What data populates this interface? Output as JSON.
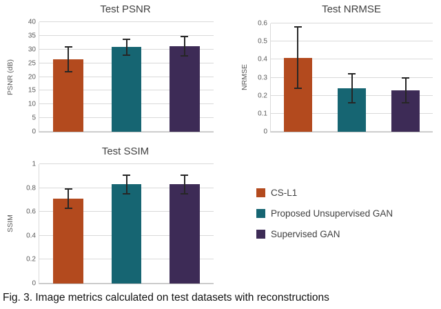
{
  "caption": "Fig. 3. Image metrics calculated on test datasets with reconstructions",
  "legend": {
    "items": [
      {
        "label": "CS-L1",
        "color": "#B34A1E"
      },
      {
        "label": "Proposed Unsupervised GAN",
        "color": "#166572"
      },
      {
        "label": "Supervised GAN",
        "color": "#3D2B56"
      }
    ]
  },
  "chart_data": [
    {
      "type": "bar",
      "title": "Test PSNR",
      "xlabel": "",
      "ylabel": "PSNR (dB)",
      "ylim": [
        0,
        40
      ],
      "yticks": [
        0,
        5,
        10,
        15,
        20,
        25,
        30,
        35,
        40
      ],
      "ytick_labels": [
        "0",
        "5",
        "10",
        "15",
        "20",
        "25",
        "30",
        "35",
        "40"
      ],
      "categories": [
        "CS-L1",
        "Proposed Unsupervised GAN",
        "Supervised GAN"
      ],
      "values": [
        26.4,
        30.9,
        31.2
      ],
      "errors_minus": [
        4.6,
        2.9,
        3.6
      ],
      "errors_plus": [
        4.6,
        2.9,
        3.6
      ],
      "grid": true,
      "legend_position": "none"
    },
    {
      "type": "bar",
      "title": "Test NRMSE",
      "xlabel": "",
      "ylabel": "NRMSE",
      "ylim": [
        0,
        0.6
      ],
      "yticks": [
        0,
        0.1,
        0.2,
        0.3,
        0.4,
        0.5,
        0.6
      ],
      "ytick_labels": [
        "0",
        "0.1",
        "0.2",
        "0.3",
        "0.4",
        "0.5",
        "0.6"
      ],
      "categories": [
        "CS-L1",
        "Proposed Unsupervised GAN",
        "Supervised GAN"
      ],
      "values": [
        0.41,
        0.24,
        0.23
      ],
      "errors_minus": [
        0.17,
        0.08,
        0.07
      ],
      "errors_plus": [
        0.17,
        0.08,
        0.07
      ],
      "grid": true,
      "legend_position": "none"
    },
    {
      "type": "bar",
      "title": "Test SSIM",
      "xlabel": "",
      "ylabel": "SSIM",
      "ylim": [
        0,
        1
      ],
      "yticks": [
        0,
        0.2,
        0.4,
        0.6,
        0.8,
        1
      ],
      "ytick_labels": [
        "0",
        "0.2",
        "0.4",
        "0.6",
        "0.8",
        "1"
      ],
      "categories": [
        "CS-L1",
        "Proposed Unsupervised GAN",
        "Supervised GAN"
      ],
      "values": [
        0.71,
        0.83,
        0.83
      ],
      "errors_minus": [
        0.08,
        0.08,
        0.08
      ],
      "errors_plus": [
        0.08,
        0.08,
        0.08
      ],
      "grid": true,
      "legend_position": "none"
    }
  ]
}
